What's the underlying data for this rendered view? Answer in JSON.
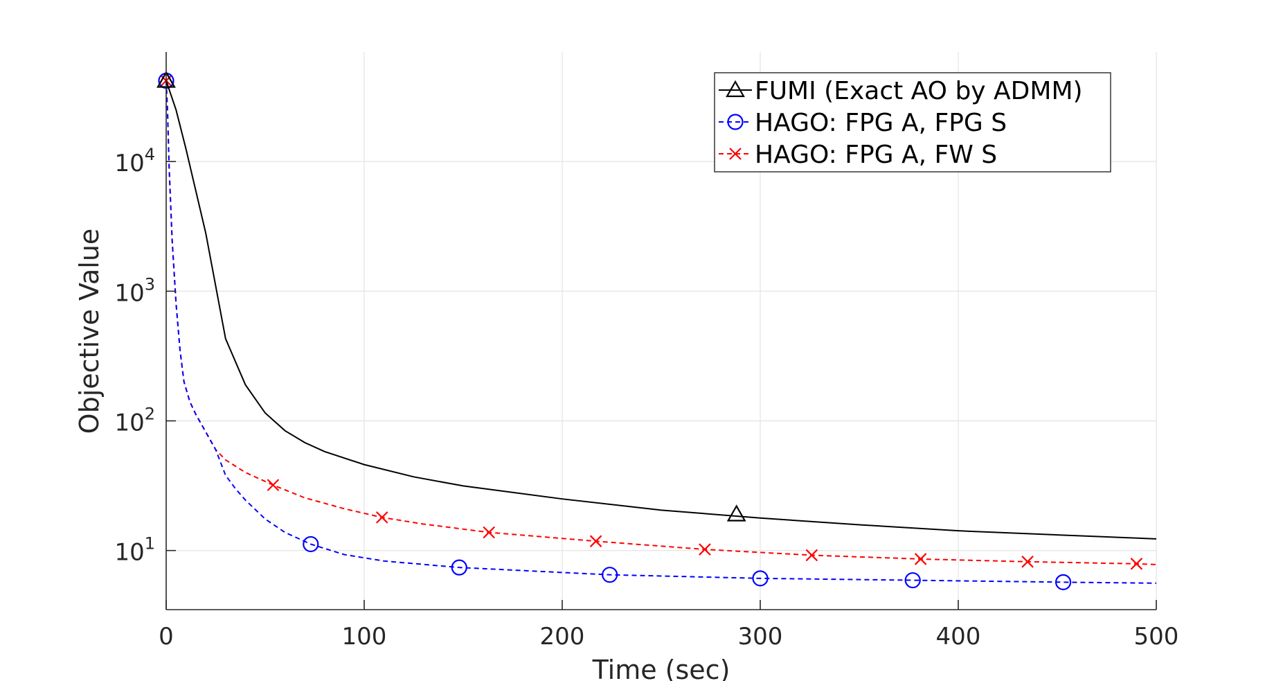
{
  "chart_data": {
    "type": "line",
    "xlabel": "Time (sec)",
    "ylabel": "Objective Value",
    "xlim": [
      0,
      500
    ],
    "ylim": [
      3.5,
      70000
    ],
    "yscale": "log",
    "grid": true,
    "legend_position": "top-right",
    "x_ticks": [
      0,
      100,
      200,
      300,
      400,
      500
    ],
    "x_tick_labels": [
      "0",
      "100",
      "200",
      "300",
      "400",
      "500"
    ],
    "y_ticks": [
      10,
      100,
      1000,
      10000
    ],
    "y_tick_labels": [
      {
        "base": "10",
        "exp": "1"
      },
      {
        "base": "10",
        "exp": "2"
      },
      {
        "base": "10",
        "exp": "3"
      },
      {
        "base": "10",
        "exp": "4"
      }
    ],
    "series": [
      {
        "name": "FUMI (Exact AO by ADMM)",
        "color": "#000000",
        "line_style": "solid",
        "marker": "triangle",
        "x": [
          0,
          5,
          10,
          20,
          30,
          40,
          50,
          60,
          70,
          80,
          100,
          125,
          150,
          200,
          250,
          300,
          350,
          400,
          450,
          500
        ],
        "y": [
          42000,
          25000,
          12500,
          2800,
          430,
          190,
          115,
          84,
          68,
          58,
          46,
          37,
          31.5,
          25,
          20.5,
          17.8,
          15.8,
          14.2,
          13.2,
          12.3
        ],
        "marker_x": [
          0,
          288
        ],
        "marker_y": [
          42000,
          19
        ]
      },
      {
        "name": "HAGO: FPG A, FPG S",
        "color": "#0000ff",
        "line_style": "dashed",
        "marker": "circle",
        "x": [
          0,
          0.7,
          1.5,
          3,
          5,
          7,
          9,
          12,
          15,
          20,
          25,
          30,
          35,
          40,
          50,
          60,
          73,
          90,
          110,
          148,
          224,
          300,
          377,
          453,
          500
        ],
        "y": [
          42000,
          24000,
          9000,
          2500,
          800,
          350,
          200,
          140,
          112,
          82,
          60,
          38,
          30,
          24.5,
          17.5,
          13.8,
          11.2,
          9.3,
          8.3,
          7.4,
          6.5,
          6.1,
          5.9,
          5.7,
          5.6
        ],
        "marker_x": [
          0,
          73,
          148,
          224,
          300,
          377,
          453
        ],
        "marker_y": [
          42000,
          11.2,
          7.4,
          6.5,
          6.1,
          5.9,
          5.7
        ]
      },
      {
        "name": "HAGO: FPG A, FW S",
        "color": "#ff0000",
        "line_style": "dashed",
        "marker": "x",
        "x": [
          0,
          0.7,
          1.5,
          3,
          5,
          7,
          9,
          12,
          15,
          20,
          25,
          30,
          40,
          54,
          70,
          90,
          109,
          130,
          163,
          217,
          272,
          326,
          381,
          435,
          490,
          500
        ],
        "y": [
          42000,
          24000,
          9000,
          2500,
          800,
          350,
          200,
          140,
          112,
          82,
          60,
          50,
          40,
          32,
          25.5,
          21,
          18,
          16,
          13.8,
          11.8,
          10.2,
          9.2,
          8.6,
          8.2,
          7.9,
          7.8
        ],
        "marker_x": [
          0,
          54,
          109,
          163,
          217,
          272,
          326,
          381,
          435,
          490
        ],
        "marker_y": [
          42000,
          32,
          18,
          13.8,
          11.8,
          10.2,
          9.2,
          8.6,
          8.2,
          7.9
        ]
      }
    ]
  }
}
